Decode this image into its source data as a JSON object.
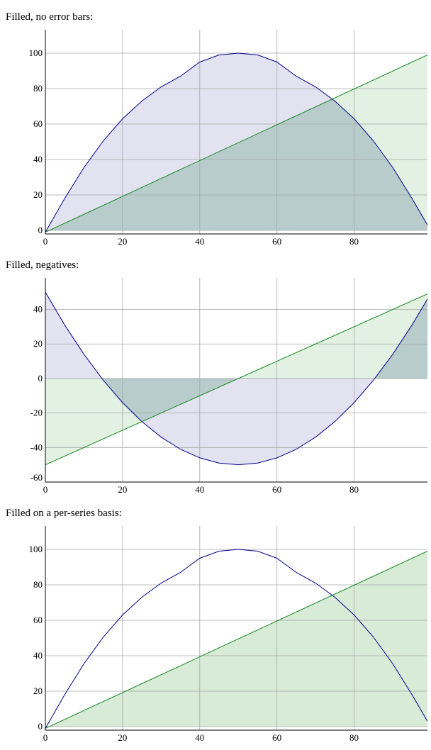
{
  "headings": [
    "Filled, no error bars:",
    "Filled, negatives:",
    "Filled on a per-series basis:"
  ],
  "colors": {
    "blue_line": "#00008b",
    "blue_fill": "#d7d7ec",
    "green_line": "#11881d",
    "green_fill": "#d7ebd7",
    "overlap_fill": "#b8cccc",
    "grid": "#a6a6a6",
    "axis": "#000000"
  },
  "chart_data": [
    {
      "type": "area",
      "title": "Filled, no error bars:",
      "xlim": [
        0,
        99
      ],
      "ylim": [
        -2,
        110
      ],
      "xticks": [
        0,
        20,
        40,
        60,
        80
      ],
      "yticks": [
        0,
        20,
        40,
        60,
        80,
        100
      ],
      "grid": true,
      "series": [
        {
          "color": "blue",
          "filled": true,
          "values_desc": "parabola",
          "x": [
            0,
            5,
            10,
            15,
            20,
            25,
            30,
            35,
            40,
            45,
            50,
            55,
            60,
            65,
            70,
            75,
            80,
            85,
            90,
            95,
            99
          ],
          "y": [
            -1,
            18,
            35.5,
            50.5,
            63,
            73,
            81,
            87,
            95,
            99,
            100,
            99,
            95,
            87,
            81,
            73,
            63,
            50.5,
            35.5,
            18,
            3
          ]
        },
        {
          "color": "green",
          "filled": true,
          "x": [
            0,
            99
          ],
          "y": [
            -1,
            99
          ]
        }
      ]
    },
    {
      "type": "area",
      "title": "Filled, negatives:",
      "xlim": [
        0,
        99
      ],
      "ylim": [
        -60,
        55
      ],
      "xticks": [
        0,
        20,
        40,
        60,
        80
      ],
      "yticks": [
        -60,
        -40,
        -20,
        0,
        20,
        40
      ],
      "grid": true,
      "series": [
        {
          "color": "blue",
          "filled": true,
          "x": [
            0,
            5,
            10,
            15,
            20,
            25,
            30,
            35,
            40,
            45,
            50,
            55,
            60,
            65,
            70,
            75,
            80,
            85,
            90,
            95,
            99
          ],
          "y": [
            50,
            31,
            14,
            -1,
            -14,
            -25,
            -34,
            -41,
            -46,
            -49,
            -50,
            -49,
            -46,
            -41,
            -34,
            -25,
            -14,
            -1,
            14,
            31,
            46
          ]
        },
        {
          "color": "green",
          "filled": true,
          "x": [
            0,
            99
          ],
          "y": [
            -50,
            49
          ]
        }
      ]
    },
    {
      "type": "area",
      "title": "Filled on a per-series basis:",
      "xlim": [
        0,
        99
      ],
      "ylim": [
        -2,
        110
      ],
      "xticks": [
        0,
        20,
        40,
        60,
        80
      ],
      "yticks": [
        0,
        20,
        40,
        60,
        80,
        100
      ],
      "grid": true,
      "series": [
        {
          "color": "blue",
          "filled": false,
          "x": [
            0,
            5,
            10,
            15,
            20,
            25,
            30,
            35,
            40,
            45,
            50,
            55,
            60,
            65,
            70,
            75,
            80,
            85,
            90,
            95,
            99
          ],
          "y": [
            -1,
            18,
            35.5,
            50.5,
            63,
            73,
            81,
            87,
            95,
            99,
            100,
            99,
            95,
            87,
            81,
            73,
            63,
            50.5,
            35.5,
            18,
            3
          ]
        },
        {
          "color": "green",
          "filled": true,
          "x": [
            0,
            99
          ],
          "y": [
            -1,
            99
          ]
        }
      ]
    }
  ]
}
